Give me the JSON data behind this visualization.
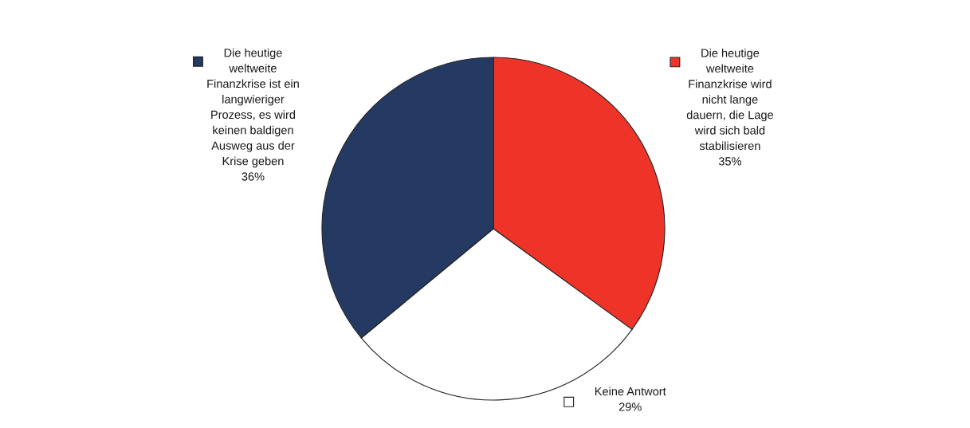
{
  "chart_data": {
    "type": "pie",
    "categories": [
      "Die heutige\nweltweite\nFinanzkrise wird\nnicht lange\ndauern, die Lage\nwird sich bald\nstabilisieren",
      "Keine Antwort",
      "Die heutige\nweltweite\nFinanzkrise ist ein\nlangwieriger\nProzess, es wird\nkeinen baldigen\nAusweg aus der\nKrise geben"
    ],
    "values": [
      35,
      29,
      36
    ],
    "value_labels": [
      "35%",
      "29%",
      "36%"
    ],
    "colors": [
      "#ee3429",
      "#ffffff",
      "#253a63"
    ],
    "legend": "top"
  }
}
